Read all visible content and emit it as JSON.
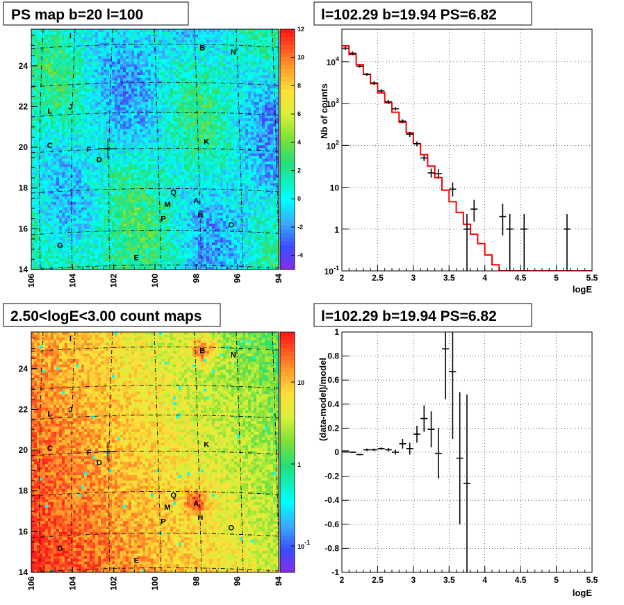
{
  "colors": {
    "model_line": "#ff0000",
    "data_points": "#000000",
    "grid": "#000000"
  },
  "panels": {
    "psmap": {
      "title": "PS map b=20 l=100"
    },
    "spectrum": {
      "title": "l=102.29 b=19.94 PS=6.82"
    },
    "countmap": {
      "title": "2.50<logE<3.00 count maps"
    },
    "residual": {
      "title": "l=102.29 b=19.94 PS=6.82"
    }
  },
  "chart_data": [
    {
      "type": "heatmap",
      "title": "PS map b=20 l=100",
      "x_ticks": [
        "106",
        "104",
        "102",
        "100",
        "98",
        "96",
        "94"
      ],
      "y_ticks": [
        "14",
        "16",
        "18",
        "20",
        "22",
        "24"
      ],
      "xlim": [
        106,
        94
      ],
      "ylim": [
        14,
        25.8
      ],
      "colorbar": {
        "range": [
          -5,
          12
        ],
        "ticks": [
          "12",
          "10",
          "8",
          "6",
          "4",
          "2",
          "0",
          "-2",
          "-4"
        ]
      },
      "marker": {
        "l": 102.29,
        "b": 19.94
      },
      "sources": [
        {
          "label": "I",
          "l": 104.1,
          "b": 25.5
        },
        {
          "label": "B",
          "l": 97.7,
          "b": 24.9
        },
        {
          "label": "N",
          "l": 96.2,
          "b": 24.7
        },
        {
          "label": "L",
          "l": 105.1,
          "b": 21.8
        },
        {
          "label": "J",
          "l": 104.1,
          "b": 22.0
        },
        {
          "label": "C",
          "l": 105.1,
          "b": 20.1
        },
        {
          "label": "F",
          "l": 103.2,
          "b": 19.9
        },
        {
          "label": "K",
          "l": 97.5,
          "b": 20.3
        },
        {
          "label": "D",
          "l": 102.7,
          "b": 19.4
        },
        {
          "label": "Q",
          "l": 99.1,
          "b": 17.8
        },
        {
          "label": "A",
          "l": 98.0,
          "b": 17.4
        },
        {
          "label": "M",
          "l": 99.4,
          "b": 17.2
        },
        {
          "label": "H",
          "l": 97.8,
          "b": 16.7
        },
        {
          "label": "P",
          "l": 99.6,
          "b": 16.5
        },
        {
          "label": "O",
          "l": 96.3,
          "b": 16.2
        },
        {
          "label": "G",
          "l": 104.6,
          "b": 15.2
        },
        {
          "label": "E",
          "l": 100.9,
          "b": 14.6
        }
      ]
    },
    {
      "type": "line",
      "title": "l=102.29 b=19.94 PS=6.82",
      "xlabel": "logE",
      "ylabel": "Nb of counts",
      "xlim": [
        2,
        5.5
      ],
      "ylim": [
        0.1,
        60000
      ],
      "yscale": "log",
      "x_ticks": [
        "2",
        "2.5",
        "3",
        "3.5",
        "4",
        "4.5",
        "5",
        "5.5"
      ],
      "y_ticks": [
        "10^-1",
        "1",
        "10",
        "10^2",
        "10^3",
        "10^4"
      ],
      "grid": true,
      "series": [
        {
          "kind": "data",
          "points": [
            {
              "x": 2.05,
              "y": 21000,
              "lo": 19000,
              "hi": 23000
            },
            {
              "x": 2.15,
              "y": 16000,
              "lo": 14500,
              "hi": 17500
            },
            {
              "x": 2.25,
              "y": 7800,
              "lo": 7200,
              "hi": 8400
            },
            {
              "x": 2.35,
              "y": 5000,
              "lo": 4600,
              "hi": 5400
            },
            {
              "x": 2.45,
              "y": 3100,
              "lo": 2800,
              "hi": 3400
            },
            {
              "x": 2.55,
              "y": 2000,
              "lo": 1800,
              "hi": 2200
            },
            {
              "x": 2.65,
              "y": 1100,
              "lo": 980,
              "hi": 1220
            },
            {
              "x": 2.75,
              "y": 750,
              "lo": 680,
              "hi": 820
            },
            {
              "x": 2.85,
              "y": 380,
              "lo": 340,
              "hi": 420
            },
            {
              "x": 2.95,
              "y": 185,
              "lo": 160,
              "hi": 210
            },
            {
              "x": 3.05,
              "y": 110,
              "lo": 95,
              "hi": 125
            },
            {
              "x": 3.15,
              "y": 50,
              "lo": 42,
              "hi": 58
            },
            {
              "x": 3.25,
              "y": 22,
              "lo": 17,
              "hi": 28
            },
            {
              "x": 3.35,
              "y": 21,
              "lo": 16,
              "hi": 27
            },
            {
              "x": 3.55,
              "y": 9,
              "lo": 6,
              "hi": 13
            },
            {
              "x": 3.75,
              "y": 1,
              "lo": 0.1,
              "hi": 2.3
            },
            {
              "x": 3.85,
              "y": 3,
              "lo": 1.5,
              "hi": 5
            },
            {
              "x": 4.25,
              "y": 2,
              "lo": 0.7,
              "hi": 4
            },
            {
              "x": 4.35,
              "y": 1,
              "lo": 0.1,
              "hi": 2.3
            },
            {
              "x": 4.55,
              "y": 1,
              "lo": 0.1,
              "hi": 2.3
            },
            {
              "x": 5.15,
              "y": 1,
              "lo": 0.1,
              "hi": 2.3
            }
          ]
        },
        {
          "kind": "model",
          "step_edges": [
            2,
            2.1,
            2.2,
            2.3,
            2.4,
            2.5,
            2.6,
            2.7,
            2.8,
            2.9,
            3,
            3.1,
            3.2,
            3.3,
            3.4,
            3.5,
            3.6,
            3.7,
            3.8,
            3.9,
            4,
            4.1,
            4.2,
            5.5
          ],
          "step_values": [
            24000,
            15000,
            8500,
            5000,
            3000,
            1800,
            1050,
            620,
            360,
            200,
            110,
            60,
            32,
            17,
            8.5,
            4.5,
            2.5,
            1.3,
            0.75,
            0.45,
            0.24,
            0.14,
            0.1
          ]
        }
      ]
    },
    {
      "type": "heatmap",
      "title": "2.50<logE<3.00 count maps",
      "x_ticks": [
        "106",
        "104",
        "102",
        "100",
        "98",
        "96",
        "94"
      ],
      "y_ticks": [
        "14",
        "16",
        "18",
        "20",
        "22",
        "24"
      ],
      "xlim": [
        106,
        94
      ],
      "ylim": [
        14,
        25.8
      ],
      "colorbar": {
        "scale": "log",
        "ticks": [
          "10",
          "1",
          "10^-1"
        ]
      },
      "marker": {
        "l": 102.29,
        "b": 19.94
      },
      "sources_same_as_psmap": true
    },
    {
      "type": "scatter",
      "title": "l=102.29 b=19.94 PS=6.82",
      "xlabel": "logE",
      "ylabel": "(data-model)/model",
      "xlim": [
        2,
        5.5
      ],
      "ylim": [
        -1,
        1
      ],
      "x_ticks": [
        "2",
        "2.5",
        "3",
        "3.5",
        "4",
        "4.5",
        "5",
        "5.5"
      ],
      "y_ticks": [
        "-1",
        "-0.8",
        "-0.6",
        "-0.4",
        "-0.2",
        "0",
        "0.2",
        "0.4",
        "0.6",
        "0.8",
        "1"
      ],
      "grid": true,
      "points": [
        {
          "x": 2.05,
          "y": 0.01,
          "err": 0.005
        },
        {
          "x": 2.15,
          "y": 0.0,
          "err": 0.005
        },
        {
          "x": 2.25,
          "y": -0.02,
          "err": 0.005
        },
        {
          "x": 2.35,
          "y": 0.02,
          "err": 0.01
        },
        {
          "x": 2.45,
          "y": 0.02,
          "err": 0.01
        },
        {
          "x": 2.55,
          "y": 0.03,
          "err": 0.01
        },
        {
          "x": 2.65,
          "y": 0.02,
          "err": 0.015
        },
        {
          "x": 2.75,
          "y": 0.0,
          "err": 0.02
        },
        {
          "x": 2.85,
          "y": 0.07,
          "err": 0.04
        },
        {
          "x": 2.95,
          "y": 0.03,
          "err": 0.05
        },
        {
          "x": 3.05,
          "y": 0.15,
          "err": 0.07
        },
        {
          "x": 3.15,
          "y": 0.28,
          "err": 0.11
        },
        {
          "x": 3.25,
          "y": 0.19,
          "err": 0.15
        },
        {
          "x": 3.35,
          "y": -0.01,
          "err": 0.21
        },
        {
          "x": 3.45,
          "y": 0.86,
          "err": 0.42
        },
        {
          "x": 3.55,
          "y": 0.67,
          "err": 0.56
        },
        {
          "x": 3.65,
          "y": -0.05,
          "err": 0.55
        },
        {
          "x": 3.75,
          "y": -0.26,
          "err": 0.74
        }
      ]
    }
  ]
}
